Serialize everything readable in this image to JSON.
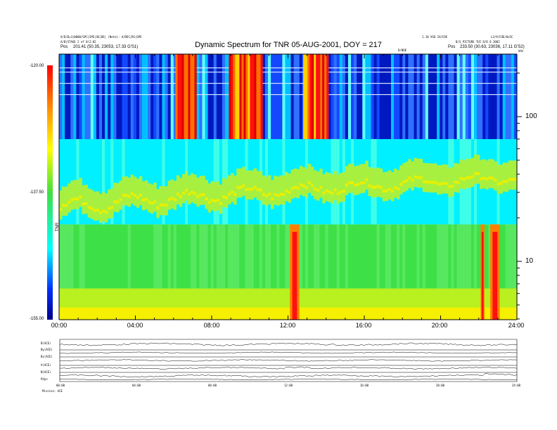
{
  "header": {
    "left_line1": "A/D/B=3|0000/SPC|SPE|SE|DE| (Note): A/REC|RS|SPE",
    "left_line2": "A/B|STAGE 2 of 8/2:02",
    "left_line3": "Pos",
    "left_pos": "201.41 (50.35, 23053, 17.33 G'S1)",
    "right_line1": "1.10 VGO 2U/COE",
    "right_line2": "B/S_PICTURE TUI D/D 8 2002",
    "right_line3": "Pos",
    "right_pos": "233.50 (30.63, 23036, 17.11 G'S2)",
    "right_corner": "L3/9/COE/0x5C",
    "center_label": "D/NOE"
  },
  "chart_data": {
    "type": "heatmap",
    "title": "Dynamic Spectrum for TNR 05-AUG-2001, DOY = 217",
    "xlabel": "",
    "ylabel": "kHz",
    "xlim_hours": [
      0,
      24
    ],
    "x_ticks": [
      "00:00",
      "04:00",
      "08:00",
      "12:00",
      "16:00",
      "20:00",
      "24:00"
    ],
    "y_scale": "log",
    "y_ticks": [
      "100",
      "10"
    ],
    "y_units": "kHz",
    "colorbar": {
      "ticks": [
        "-120.00",
        "-137.50",
        "-155.00"
      ],
      "label": "TNR",
      "range": [
        -155,
        -120
      ],
      "colormap": [
        "#00008b",
        "#0030ff",
        "#00ffff",
        "#40e040",
        "#ffff00",
        "#ff8000",
        "#ff0000"
      ]
    },
    "bands": [
      {
        "name": "upper_receiver_background",
        "freq_khz": [
          70,
          300
        ],
        "level": "blue",
        "note": "dark blue background with vertical texture"
      },
      {
        "name": "upper_receiver_bursts",
        "time_ranges_h": [
          [
            6.1,
            7.2
          ],
          [
            8.9,
            10.6
          ],
          [
            12.8,
            14.1
          ]
        ],
        "level": "red"
      },
      {
        "name": "mid_band",
        "freq_khz": [
          18,
          70
        ],
        "level": "cyan"
      },
      {
        "name": "emission_band",
        "freq_khz_approx": [
          22,
          40
        ],
        "level": "green-yellow",
        "note": "drifting emission band rising from ~25 to ~40 kHz"
      },
      {
        "name": "low_band",
        "freq_khz": [
          3.5,
          18
        ],
        "level": "green"
      },
      {
        "name": "low_floor",
        "freq_khz": [
          3.5,
          5
        ],
        "level": "yellow"
      },
      {
        "name": "low_bursts",
        "time_ranges_h": [
          [
            12.1,
            12.6
          ],
          [
            22.1,
            22.3
          ],
          [
            22.6,
            23.1
          ]
        ],
        "level": "red"
      }
    ]
  },
  "lower_panels": {
    "row_labels": [
      "B(ACE)",
      "By(ACE)",
      "Bz(ACE)",
      "V(ACE)",
      "N(ACE)",
      "Pdyn"
    ],
    "x_ticks": [
      "00:00",
      "04:00",
      "08:00",
      "12:00",
      "16:00",
      "20:00",
      "24:00"
    ],
    "footer_label": "Mission: ACE"
  }
}
